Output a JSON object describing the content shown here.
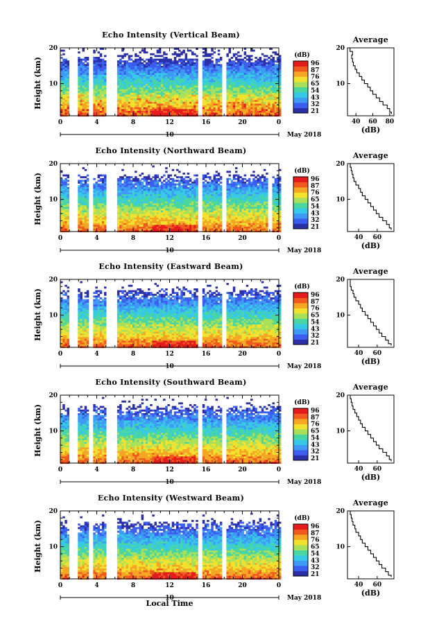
{
  "chart_data": [
    {
      "type": "heatmap",
      "title": "Echo Intensity (Vertical Beam)",
      "ylabel": "Height (km)",
      "y_ticks": [
        "20",
        "10"
      ],
      "x_ticks": [
        "0",
        "4",
        "8",
        "12",
        "16",
        "20",
        "0"
      ],
      "date_marker": "10",
      "date_label": "May 2018",
      "xlim": [
        0,
        24
      ],
      "ylim": [
        1,
        20
      ],
      "colorbar": {
        "unit": "(dB)",
        "ticks": [
          "96",
          "87",
          "76",
          "65",
          "54",
          "43",
          "32",
          "21"
        ]
      },
      "gaps_hours": [
        [
          1.0,
          1.9
        ],
        [
          3.2,
          3.6
        ],
        [
          5.1,
          6.2
        ],
        [
          15.2,
          15.7
        ],
        [
          17.7,
          18.2
        ]
      ],
      "profile": {
        "title": "Average",
        "xlabel": "(dB)",
        "x_ticks": [
          "40",
          "60",
          "80"
        ],
        "xlim": [
          30,
          85
        ],
        "ylim": [
          1,
          20
        ],
        "y_ticks": [
          "20",
          "10"
        ],
        "height_km": [
          1.5,
          2,
          3,
          4,
          5,
          6,
          7,
          8,
          9,
          10,
          11,
          12,
          13,
          14,
          15,
          16,
          17,
          18,
          19,
          20
        ],
        "values_db": [
          82,
          80,
          77,
          72,
          68,
          64,
          60,
          57,
          54,
          50,
          47,
          44,
          41,
          39,
          37,
          36,
          35,
          36,
          33,
          34
        ]
      }
    },
    {
      "type": "heatmap",
      "title": "Echo Intensity (Northward Beam)",
      "ylabel": "Height (km)",
      "y_ticks": [
        "20",
        "10"
      ],
      "x_ticks": [
        "0",
        "4",
        "8",
        "12",
        "16",
        "20",
        "0"
      ],
      "date_marker": "10",
      "date_label": "May 2018",
      "xlim": [
        0,
        24
      ],
      "ylim": [
        1,
        20
      ],
      "colorbar": {
        "unit": "(dB)",
        "ticks": [
          "96",
          "87",
          "76",
          "65",
          "54",
          "43",
          "32",
          "21"
        ]
      },
      "gaps_hours": [
        [
          1.0,
          2.0
        ],
        [
          3.2,
          3.6
        ],
        [
          5.1,
          6.2
        ],
        [
          15.2,
          15.7
        ],
        [
          17.7,
          18.2
        ],
        [
          22.8,
          23.2
        ]
      ],
      "profile": {
        "title": "Average",
        "xlabel": "(dB)",
        "x_ticks": [
          "40",
          "60"
        ],
        "xlim": [
          28,
          78
        ],
        "ylim": [
          1,
          20
        ],
        "y_ticks": [
          "20",
          "10"
        ],
        "height_km": [
          1.5,
          2,
          3,
          4,
          5,
          6,
          7,
          8,
          9,
          10,
          11,
          12,
          13,
          14,
          15,
          16,
          17,
          18,
          19,
          20
        ],
        "values_db": [
          75,
          73,
          70,
          66,
          62,
          59,
          56,
          53,
          50,
          47,
          44,
          42,
          40,
          37,
          35,
          34,
          33,
          32,
          31,
          30
        ]
      }
    },
    {
      "type": "heatmap",
      "title": "Echo Intensity (Eastward Beam)",
      "ylabel": "Height (km)",
      "y_ticks": [
        "20",
        "10"
      ],
      "x_ticks": [
        "0",
        "4",
        "8",
        "12",
        "16",
        "20",
        "0"
      ],
      "date_marker": "10",
      "date_label": "May 2018",
      "xlim": [
        0,
        24
      ],
      "ylim": [
        1,
        20
      ],
      "colorbar": {
        "unit": "(dB)",
        "ticks": [
          "96",
          "87",
          "76",
          "65",
          "54",
          "43",
          "32",
          "21"
        ]
      },
      "gaps_hours": [
        [
          1.0,
          2.0
        ],
        [
          3.2,
          3.6
        ],
        [
          5.1,
          6.2
        ],
        [
          15.2,
          15.7
        ],
        [
          17.7,
          18.2
        ]
      ],
      "profile": {
        "title": "Average",
        "xlabel": "(dB)",
        "x_ticks": [
          "40",
          "60"
        ],
        "xlim": [
          28,
          78
        ],
        "ylim": [
          1,
          20
        ],
        "y_ticks": [
          "20",
          "10"
        ],
        "height_km": [
          1.5,
          2,
          3,
          4,
          5,
          6,
          7,
          8,
          9,
          10,
          11,
          12,
          13,
          14,
          15,
          16,
          17,
          18,
          19,
          20
        ],
        "values_db": [
          75,
          72,
          69,
          65,
          62,
          59,
          56,
          53,
          50,
          47,
          44,
          42,
          40,
          37,
          35,
          34,
          32,
          31,
          31,
          30
        ]
      }
    },
    {
      "type": "heatmap",
      "title": "Echo Intensity (Southward Beam)",
      "ylabel": "Height (km)",
      "y_ticks": [
        "20",
        "10"
      ],
      "x_ticks": [
        "0",
        "4",
        "8",
        "12",
        "16",
        "20",
        "0"
      ],
      "date_marker": "10",
      "date_label": "May 2018",
      "xlim": [
        0,
        24
      ],
      "ylim": [
        1,
        20
      ],
      "colorbar": {
        "unit": "(dB)",
        "ticks": [
          "96",
          "87",
          "76",
          "65",
          "54",
          "43",
          "32",
          "21"
        ]
      },
      "gaps_hours": [
        [
          1.0,
          2.0
        ],
        [
          3.2,
          3.6
        ],
        [
          5.1,
          6.2
        ],
        [
          15.2,
          15.7
        ],
        [
          17.7,
          18.2
        ]
      ],
      "profile": {
        "title": "Average",
        "xlabel": "(dB)",
        "x_ticks": [
          "40",
          "60"
        ],
        "xlim": [
          28,
          78
        ],
        "ylim": [
          1,
          20
        ],
        "y_ticks": [
          "20",
          "10"
        ],
        "height_km": [
          1.5,
          2,
          3,
          4,
          5,
          6,
          7,
          8,
          9,
          10,
          11,
          12,
          13,
          14,
          15,
          16,
          17,
          18,
          19,
          20
        ],
        "values_db": [
          75,
          73,
          70,
          66,
          62,
          59,
          56,
          53,
          50,
          47,
          44,
          42,
          40,
          38,
          36,
          34,
          33,
          32,
          31,
          30
        ]
      }
    },
    {
      "type": "heatmap",
      "title": "Echo Intensity (Westward Beam)",
      "ylabel": "Height (km)",
      "y_ticks": [
        "20",
        "10"
      ],
      "x_ticks": [
        "0",
        "4",
        "8",
        "12",
        "16",
        "20",
        "0"
      ],
      "date_marker": "10",
      "date_label": "May 2018",
      "xlabel": "Local Time",
      "xlim": [
        0,
        24
      ],
      "ylim": [
        1,
        20
      ],
      "colorbar": {
        "unit": "(dB)",
        "ticks": [
          "96",
          "87",
          "76",
          "65",
          "54",
          "43",
          "32",
          "21"
        ]
      },
      "gaps_hours": [
        [
          1.0,
          2.0
        ],
        [
          3.2,
          3.6
        ],
        [
          5.1,
          6.2
        ],
        [
          15.2,
          15.7
        ],
        [
          17.7,
          18.2
        ]
      ],
      "profile": {
        "title": "Average",
        "xlabel": "(dB)",
        "x_ticks": [
          "40",
          "60"
        ],
        "xlim": [
          28,
          78
        ],
        "ylim": [
          1,
          20
        ],
        "y_ticks": [
          "20",
          "10"
        ],
        "height_km": [
          1.5,
          2,
          3,
          4,
          5,
          6,
          7,
          8,
          9,
          10,
          11,
          12,
          13,
          14,
          15,
          16,
          17,
          18,
          19,
          20
        ],
        "values_db": [
          75,
          72,
          69,
          65,
          62,
          59,
          56,
          53,
          50,
          47,
          44,
          42,
          40,
          37,
          36,
          34,
          33,
          32,
          31,
          30
        ]
      }
    }
  ],
  "colormap": [
    "#2b2fa8",
    "#3c5ef0",
    "#3f9af5",
    "#36c9e6",
    "#49d6a0",
    "#a8e05a",
    "#f2e22e",
    "#f5a623",
    "#f05a1e",
    "#e41a1c"
  ]
}
